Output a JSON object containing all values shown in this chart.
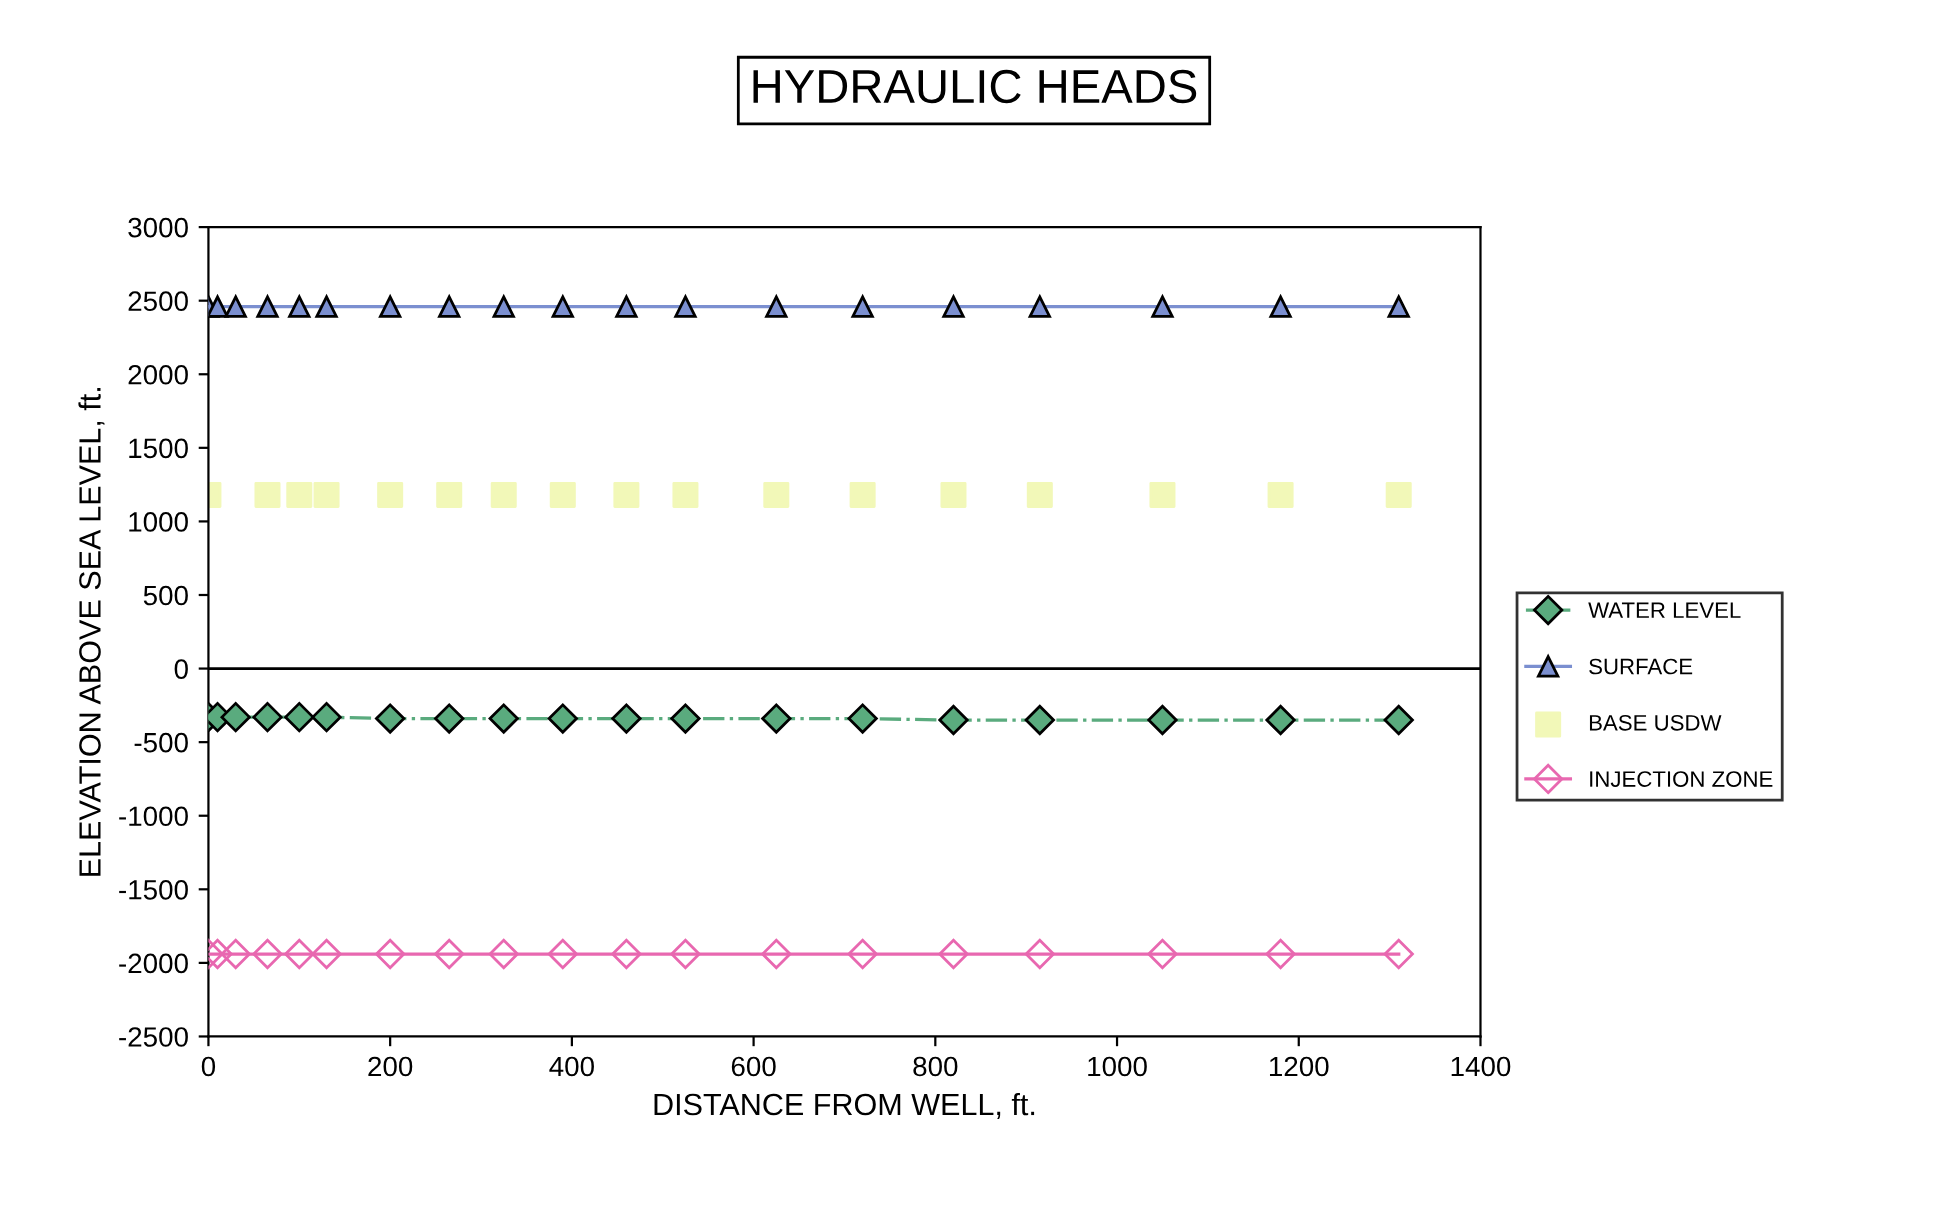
{
  "chart_data": {
    "type": "line",
    "title": "HYDRAULIC HEADS",
    "xlabel": "DISTANCE FROM WELL, ft.",
    "ylabel": "ELEVATION ABOVE SEA LEVEL, ft.",
    "x": [
      0,
      10,
      30,
      65,
      100,
      130,
      200,
      265,
      325,
      390,
      460,
      525,
      625,
      720,
      820,
      915,
      1050,
      1180,
      1310
    ],
    "series": [
      {
        "name": "WATER LEVEL",
        "color": "#5aab7e",
        "marker": "diamond",
        "line_style": "dotted",
        "values": [
          -330,
          -330,
          -330,
          -330,
          -330,
          -330,
          -340,
          -340,
          -340,
          -340,
          -340,
          -340,
          -340,
          -340,
          -350,
          -350,
          -350,
          -350,
          -350
        ]
      },
      {
        "name": "SURFACE",
        "color": "#7b8fd0",
        "marker": "triangle",
        "line_style": "solid",
        "values": [
          2460,
          2460,
          2460,
          2460,
          2460,
          2460,
          2460,
          2460,
          2460,
          2460,
          2460,
          2460,
          2460,
          2460,
          2460,
          2460,
          2460,
          2460,
          2460
        ]
      },
      {
        "name": "BASE USDW",
        "type": "scatter",
        "color": "#f2f8b8",
        "marker": "square",
        "x": [
          0,
          65,
          100,
          130,
          200,
          265,
          325,
          390,
          460,
          525,
          625,
          720,
          820,
          915,
          1050,
          1180,
          1310
        ],
        "values": [
          1180,
          1180,
          1180,
          1180,
          1180,
          1180,
          1180,
          1180,
          1180,
          1180,
          1180,
          1180,
          1180,
          1180,
          1180,
          1180,
          1180
        ]
      },
      {
        "name": "INJECTION ZONE",
        "color": "#e868b0",
        "marker": "diamond",
        "line_style": "solid",
        "values": [
          -1940,
          -1940,
          -1940,
          -1940,
          -1940,
          -1940,
          -1940,
          -1940,
          -1940,
          -1940,
          -1940,
          -1940,
          -1940,
          -1940,
          -1940,
          -1940,
          -1940,
          -1940,
          -1940
        ]
      }
    ],
    "xlim": [
      0,
      1400
    ],
    "xticks": [
      0,
      200,
      400,
      600,
      800,
      1000,
      1200,
      1400
    ],
    "ylim": [
      -2500,
      3000
    ],
    "yticks": [
      -2500,
      -2000,
      -1500,
      -1000,
      -500,
      0,
      500,
      1000,
      1500,
      2000,
      2500,
      3000
    ],
    "ref_lines": [
      {
        "axis": "y",
        "value": 0,
        "color": "#000000"
      }
    ],
    "grid": false,
    "legend": "right"
  }
}
